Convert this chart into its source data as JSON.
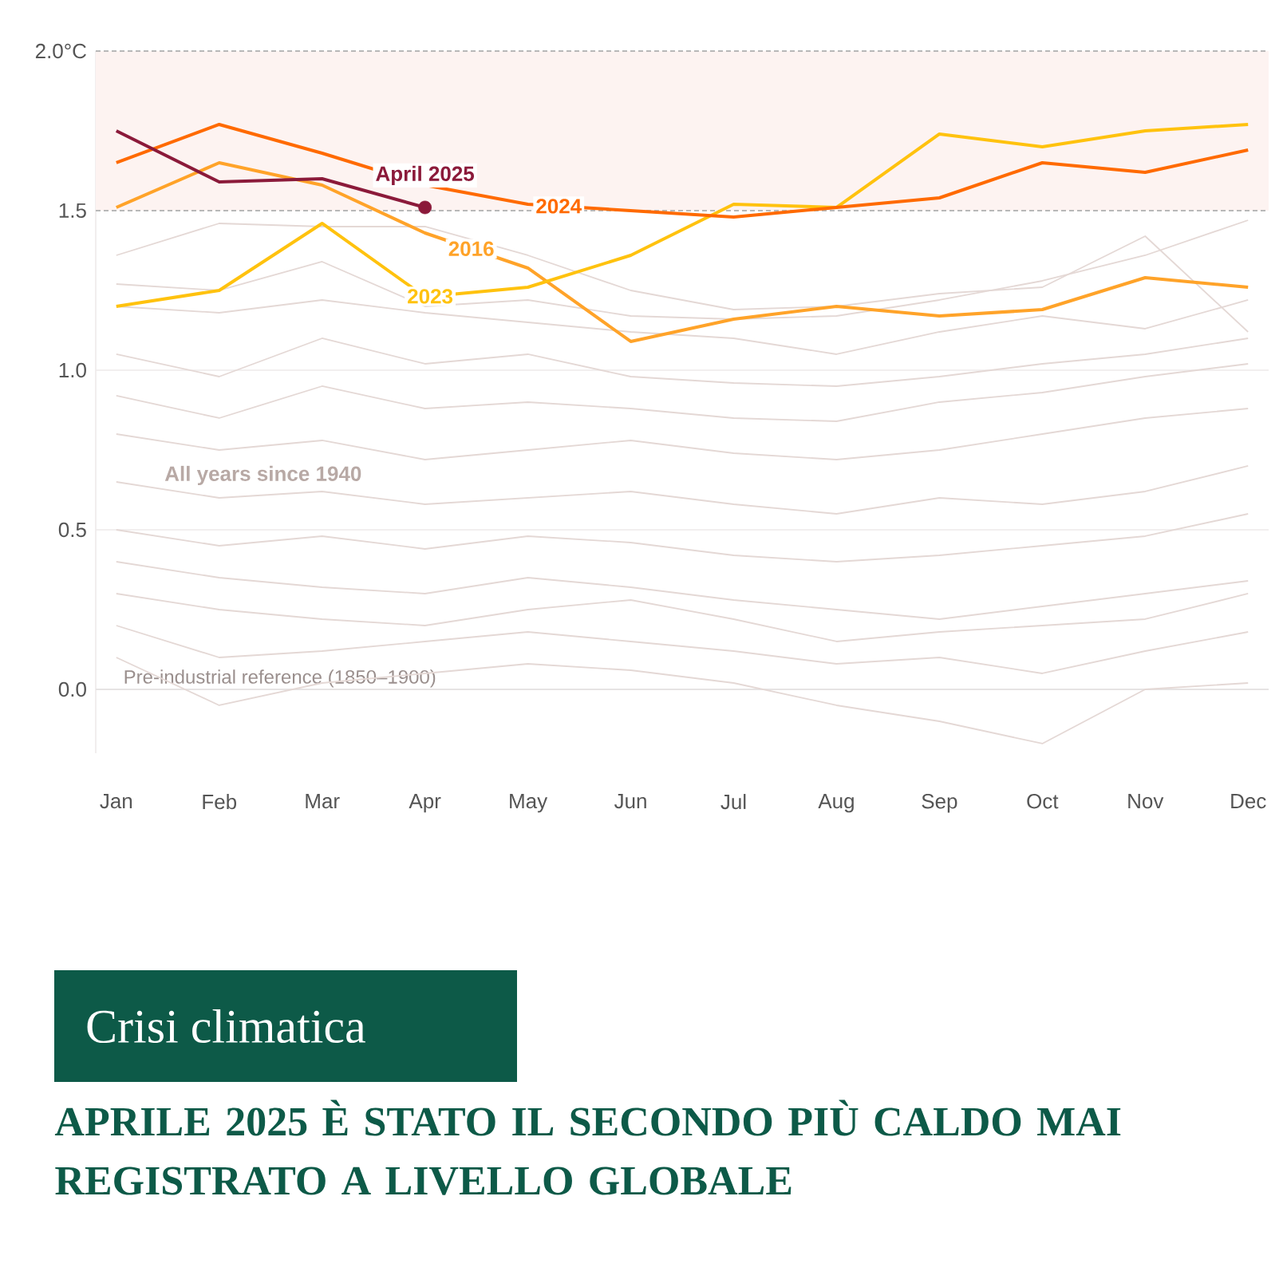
{
  "chart_data": {
    "type": "line",
    "title": "APRILE 2025 È STATO IL SECONDO PIÙ CALDO MAI REGISTRATO A LIVELLO GLOBALE",
    "subtitle": "Crisi climatica",
    "categories": [
      "Jan",
      "Feb",
      "Mar",
      "Apr",
      "May",
      "Jun",
      "Jul",
      "Aug",
      "Sep",
      "Oct",
      "Nov",
      "Dec"
    ],
    "ylim": [
      -0.2,
      2.0
    ],
    "yticks": [
      {
        "value": 0,
        "label": "0.0"
      },
      {
        "value": 0.5,
        "label": "0.5"
      },
      {
        "value": 1,
        "label": "1.0"
      },
      {
        "value": 1.5,
        "label": "1.5"
      },
      {
        "value": 2,
        "label": "2.0°C"
      }
    ],
    "grid": "y",
    "bands": [
      {
        "axis": "y",
        "from": 1.5,
        "to": 2.0,
        "color": "#fdf3f1"
      }
    ],
    "ref_lines": [
      {
        "axis": "y",
        "value": 0,
        "label": "Pre-industrial reference (1850–1900)",
        "color": "#e6e3e3",
        "line_style": "solid"
      },
      {
        "axis": "y",
        "value": 1.5,
        "color": "#b8b8b8",
        "line_style": "dashed"
      },
      {
        "axis": "y",
        "value": 2.0,
        "color": "#b8b8b8",
        "line_style": "dashed"
      }
    ],
    "annotations": [
      "All years since 1940"
    ],
    "series": [
      {
        "color": "#e4d8d5",
        "values": [
          1.36,
          1.46,
          1.45,
          1.45,
          1.36,
          1.25,
          1.19,
          1.2,
          1.24,
          1.26,
          1.42,
          1.12
        ]
      },
      {
        "color": "#e4d8d5",
        "values": [
          1.27,
          1.25,
          1.34,
          1.2,
          1.22,
          1.17,
          1.16,
          1.17,
          1.22,
          1.28,
          1.36,
          1.47
        ]
      },
      {
        "color": "#e4d8d5",
        "values": [
          1.2,
          1.18,
          1.22,
          1.18,
          1.15,
          1.12,
          1.1,
          1.05,
          1.12,
          1.17,
          1.13,
          1.22
        ]
      },
      {
        "color": "#e4d8d5",
        "values": [
          1.05,
          0.98,
          1.1,
          1.02,
          1.05,
          0.98,
          0.96,
          0.95,
          0.98,
          1.02,
          1.05,
          1.1
        ]
      },
      {
        "color": "#e4d8d5",
        "values": [
          0.92,
          0.85,
          0.95,
          0.88,
          0.9,
          0.88,
          0.85,
          0.84,
          0.9,
          0.93,
          0.98,
          1.02
        ]
      },
      {
        "color": "#e4d8d5",
        "values": [
          0.8,
          0.75,
          0.78,
          0.72,
          0.75,
          0.78,
          0.74,
          0.72,
          0.75,
          0.8,
          0.85,
          0.88
        ]
      },
      {
        "color": "#e4d8d5",
        "values": [
          0.65,
          0.6,
          0.62,
          0.58,
          0.6,
          0.62,
          0.58,
          0.55,
          0.6,
          0.58,
          0.62,
          0.7
        ]
      },
      {
        "color": "#e4d8d5",
        "values": [
          0.5,
          0.45,
          0.48,
          0.44,
          0.48,
          0.46,
          0.42,
          0.4,
          0.42,
          0.45,
          0.48,
          0.55
        ]
      },
      {
        "color": "#e4d8d5",
        "values": [
          0.4,
          0.35,
          0.32,
          0.3,
          0.35,
          0.32,
          0.28,
          0.25,
          0.22,
          0.26,
          0.3,
          0.34
        ]
      },
      {
        "color": "#e4d8d5",
        "values": [
          0.3,
          0.25,
          0.22,
          0.2,
          0.25,
          0.28,
          0.22,
          0.15,
          0.18,
          0.2,
          0.22,
          0.3
        ]
      },
      {
        "color": "#e4d8d5",
        "values": [
          0.2,
          0.1,
          0.12,
          0.15,
          0.18,
          0.15,
          0.12,
          0.08,
          0.1,
          0.05,
          0.12,
          0.18
        ]
      },
      {
        "color": "#e4d8d5",
        "values": [
          0.1,
          -0.05,
          0.02,
          0.05,
          0.08,
          0.06,
          0.02,
          -0.05,
          -0.1,
          -0.17,
          0.0,
          0.02
        ]
      },
      {
        "name": "2016",
        "color": "#ffa329",
        "values": [
          1.51,
          1.65,
          1.58,
          1.43,
          1.32,
          1.09,
          1.16,
          1.2,
          1.17,
          1.19,
          1.29,
          1.26
        ]
      },
      {
        "name": "2023",
        "color": "#ffc20e",
        "values": [
          1.2,
          1.25,
          1.46,
          1.23,
          1.26,
          1.36,
          1.52,
          1.51,
          1.74,
          1.7,
          1.75,
          1.77
        ]
      },
      {
        "name": "2024",
        "color": "#ff6a00",
        "values": [
          1.65,
          1.77,
          1.68,
          1.58,
          1.52,
          1.5,
          1.48,
          1.51,
          1.54,
          1.65,
          1.62,
          1.69
        ]
      },
      {
        "name": "April 2025",
        "color": "#8b1a3a",
        "values": [
          1.75,
          1.59,
          1.6,
          1.51,
          null,
          null,
          null,
          null,
          null,
          null,
          null,
          null
        ]
      },
      {
        "type": "scatter",
        "color": "#8b1a3a",
        "x": [
          "Apr"
        ],
        "values": [
          1.51
        ]
      }
    ]
  }
}
